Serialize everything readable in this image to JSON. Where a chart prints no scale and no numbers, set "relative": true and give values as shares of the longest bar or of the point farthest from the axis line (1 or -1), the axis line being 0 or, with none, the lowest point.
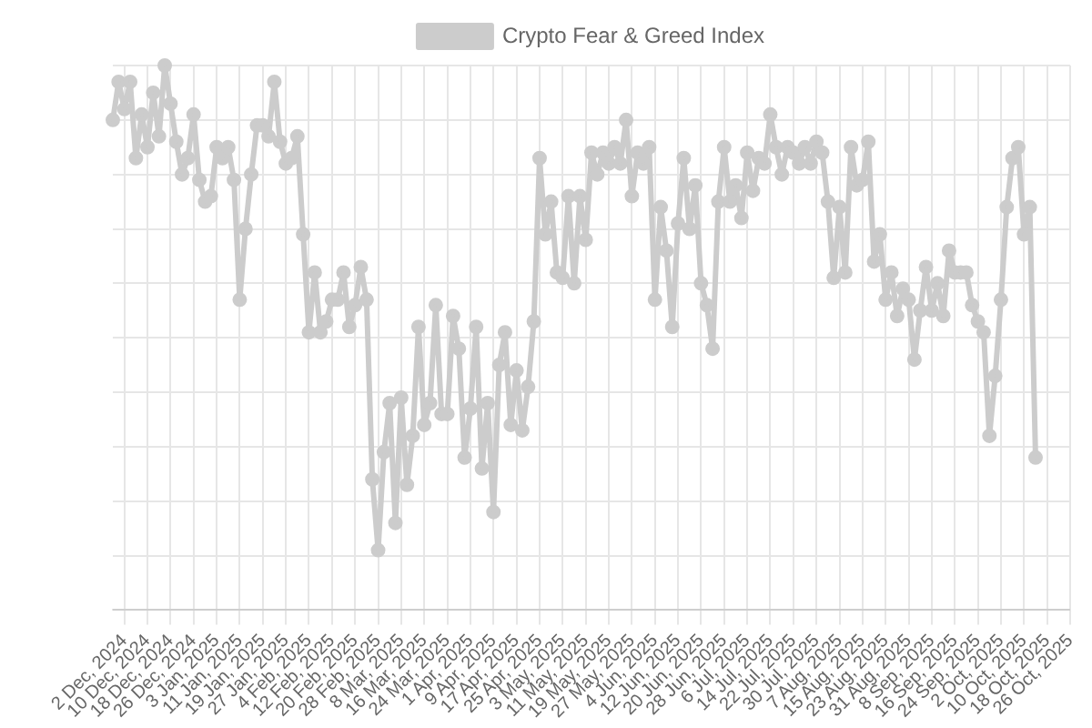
{
  "chart_data": {
    "type": "line",
    "relative": true,
    "legend": "top",
    "grid": true,
    "marker": "circle",
    "line_style": "solid",
    "categories": [
      null,
      null,
      "2 Dec, 2024",
      null,
      null,
      null,
      "10 Dec, 2024",
      null,
      null,
      null,
      "18 Dec, 2024",
      null,
      null,
      null,
      "26 Dec, 2024",
      null,
      null,
      null,
      "3 Jan, 2025",
      null,
      null,
      null,
      "11 Jan, 2025",
      null,
      null,
      null,
      "19 Jan, 2025",
      null,
      null,
      null,
      "27 Jan, 2025",
      null,
      null,
      null,
      "4 Feb, 2025",
      null,
      null,
      null,
      "12 Feb, 2025",
      null,
      null,
      null,
      "20 Feb, 2025",
      null,
      null,
      null,
      "28 Feb, 2025",
      null,
      null,
      null,
      "8 Mar, 2025",
      null,
      null,
      null,
      "16 Mar, 2025",
      null,
      null,
      null,
      "24 Mar, 2025",
      null,
      null,
      null,
      "1 Apr, 2025",
      null,
      null,
      null,
      "9 Apr, 2025",
      null,
      null,
      null,
      "17 Apr, 2025",
      null,
      null,
      null,
      "25 Apr, 2025",
      null,
      null,
      null,
      "3 May, 2025",
      null,
      null,
      null,
      "11 May, 2025",
      null,
      null,
      null,
      "19 May, 2025",
      null,
      null,
      null,
      "27 May, 2025",
      null,
      null,
      null,
      "4 Jun, 2025",
      null,
      null,
      null,
      "12 Jun, 2025",
      null,
      null,
      null,
      "20 Jun, 2025",
      null,
      null,
      null,
      "28 Jun, 2025",
      null,
      null,
      null,
      "6 Jul, 2025",
      null,
      null,
      null,
      "14 Jul, 2025",
      null,
      null,
      null,
      "22 Jul, 2025",
      null,
      null,
      null,
      "30 Jul, 2025",
      null,
      null,
      null,
      "7 Aug, 2025",
      null,
      null,
      null,
      "15 Aug, 2025",
      null,
      null,
      null,
      "23 Aug, 2025",
      null,
      null,
      null,
      "31 Aug, 2025",
      null,
      null,
      null,
      "8 Sep, 2025",
      null,
      null,
      null,
      "16 Sep, 2025",
      null,
      null,
      null,
      "24 Sep, 2025",
      null,
      null,
      null,
      "2 Oct, 2025",
      null,
      null,
      null,
      "10 Oct, 2025",
      null,
      null,
      null,
      "18 Oct, 2025",
      null,
      null,
      null,
      "26 Oct, 2025"
    ],
    "series": [
      {
        "name": "Crypto Fear & Greed Index",
        "color": "#cccccc",
        "values": [
          0.9,
          0.97,
          0.92,
          0.97,
          0.83,
          0.91,
          0.85,
          0.95,
          0.87,
          1,
          0.93,
          0.86,
          0.8,
          0.83,
          0.91,
          0.79,
          0.75,
          0.76,
          0.85,
          0.83,
          0.85,
          0.79,
          0.57,
          0.7,
          0.8,
          0.89,
          0.89,
          0.87,
          0.97,
          0.86,
          0.82,
          0.83,
          0.87,
          0.69,
          0.51,
          0.62,
          0.51,
          0.53,
          0.57,
          0.57,
          0.62,
          0.52,
          0.56,
          0.63,
          0.57,
          0.24,
          0.11,
          0.29,
          0.38,
          0.16,
          0.39,
          0.23,
          0.32,
          0.52,
          0.34,
          0.38,
          0.56,
          0.36,
          0.36,
          0.54,
          0.48,
          0.28,
          0.37,
          0.52,
          0.26,
          0.38,
          0.18,
          0.45,
          0.51,
          0.34,
          0.44,
          0.33,
          0.41,
          0.53,
          0.83,
          0.69,
          0.75,
          0.62,
          0.61,
          0.76,
          0.6,
          0.76,
          0.68,
          0.84,
          0.8,
          0.84,
          0.82,
          0.85,
          0.82,
          0.9,
          0.76,
          0.84,
          0.82,
          0.85,
          0.57,
          0.74,
          0.66,
          0.52,
          0.71,
          0.83,
          0.7,
          0.78,
          0.6,
          0.56,
          0.48,
          0.75,
          0.85,
          0.75,
          0.78,
          0.72,
          0.84,
          0.77,
          0.83,
          0.82,
          0.91,
          0.85,
          0.8,
          0.85,
          0.84,
          0.82,
          0.85,
          0.82,
          0.86,
          0.84,
          0.75,
          0.61,
          0.74,
          0.62,
          0.85,
          0.78,
          0.79,
          0.86,
          0.64,
          0.69,
          0.57,
          0.62,
          0.54,
          0.59,
          0.57,
          0.46,
          0.55,
          0.63,
          0.55,
          0.6,
          0.54,
          0.66,
          0.62,
          0.62,
          0.62,
          0.56,
          0.53,
          0.51,
          0.32,
          0.43,
          0.57,
          0.74,
          0.83,
          0.85,
          0.69,
          0.74,
          0.28,
          null,
          null,
          null,
          null,
          null,
          null
        ]
      }
    ]
  }
}
